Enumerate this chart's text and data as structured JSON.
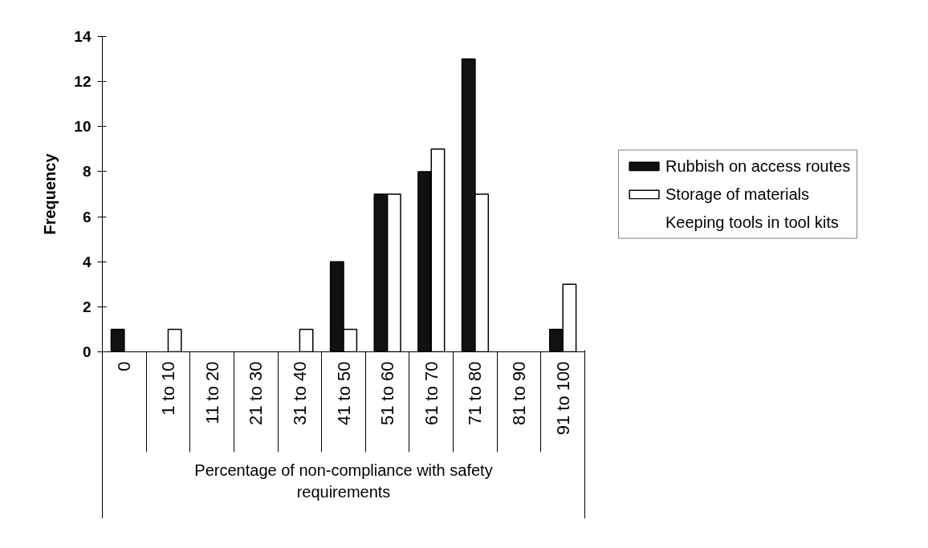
{
  "chart_data": {
    "type": "bar",
    "xlabel": "Percentage of non-compliance with safety requirements",
    "ylabel": "Frequency",
    "categories": [
      "0",
      "1 to 10",
      "11 to 20",
      "21 to 30",
      "31 to 40",
      "41 to 50",
      "51 to 60",
      "61 to 70",
      "71 to 80",
      "81 to 90",
      "91 to 100"
    ],
    "series": [
      {
        "name": "Rubbish on access routes",
        "color": "#111111",
        "values": [
          1,
          0,
          0,
          0,
          0,
          4,
          7,
          8,
          13,
          0,
          1
        ]
      },
      {
        "name": "Storage of materials",
        "color": "#ffffff",
        "values": [
          0,
          1,
          0,
          0,
          1,
          1,
          7,
          9,
          7,
          0,
          3
        ]
      },
      {
        "name": "Keeping tools in tool kits",
        "values": [
          null,
          null,
          null,
          null,
          null,
          null,
          null,
          null,
          null,
          null,
          null
        ]
      }
    ],
    "ylim": [
      0,
      14
    ],
    "yticks": [
      0,
      2,
      4,
      6,
      8,
      10,
      12,
      14
    ],
    "legend": "right"
  }
}
